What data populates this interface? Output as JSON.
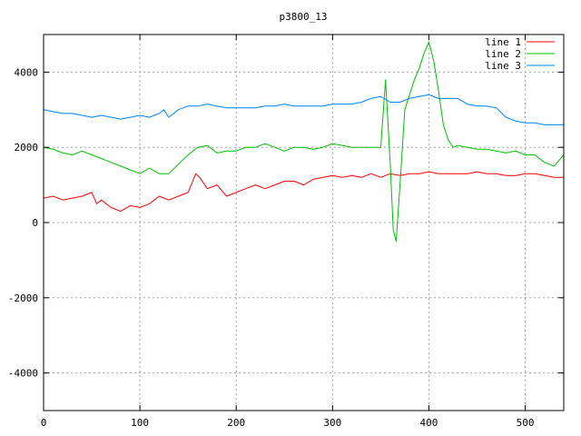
{
  "chart_data": {
    "type": "line",
    "title": "p3800_13",
    "xlabel": "",
    "ylabel": "",
    "xlim": [
      0,
      540
    ],
    "ylim": [
      -5000,
      5000
    ],
    "xticks": [
      0,
      100,
      200,
      300,
      400,
      500
    ],
    "yticks": [
      -4000,
      -2000,
      0,
      2000,
      4000
    ],
    "xtick_labels": [
      "0",
      "100",
      "200",
      "300",
      "400",
      "500"
    ],
    "ytick_labels": [
      "-4000",
      "-2000",
      "0",
      "2000",
      "4000"
    ],
    "grid": true,
    "legend_position": "top-right",
    "series": [
      {
        "name": "line 1",
        "color": "#ff0000",
        "x": [
          0,
          10,
          20,
          30,
          40,
          50,
          55,
          60,
          70,
          80,
          90,
          100,
          110,
          120,
          130,
          140,
          150,
          158,
          162,
          170,
          180,
          190,
          200,
          210,
          220,
          230,
          240,
          250,
          260,
          270,
          280,
          290,
          300,
          310,
          320,
          330,
          340,
          350,
          360,
          370,
          380,
          390,
          400,
          410,
          420,
          430,
          440,
          450,
          460,
          470,
          480,
          490,
          500,
          510,
          520,
          530,
          540
        ],
        "y": [
          650,
          700,
          600,
          650,
          700,
          800,
          500,
          600,
          400,
          300,
          450,
          400,
          500,
          700,
          600,
          700,
          800,
          1300,
          1200,
          900,
          1000,
          700,
          800,
          900,
          1000,
          900,
          1000,
          1100,
          1100,
          1000,
          1150,
          1200,
          1250,
          1200,
          1250,
          1200,
          1300,
          1200,
          1300,
          1250,
          1300,
          1300,
          1350,
          1300,
          1300,
          1300,
          1300,
          1350,
          1300,
          1300,
          1250,
          1250,
          1300,
          1300,
          1250,
          1200,
          1200
        ]
      },
      {
        "name": "line 2",
        "color": "#00c000",
        "x": [
          0,
          10,
          20,
          30,
          40,
          50,
          60,
          70,
          80,
          90,
          100,
          110,
          120,
          130,
          140,
          150,
          160,
          170,
          180,
          190,
          200,
          210,
          220,
          230,
          240,
          250,
          260,
          270,
          280,
          290,
          300,
          310,
          320,
          330,
          340,
          350,
          355,
          360,
          363,
          366,
          370,
          375,
          380,
          385,
          390,
          395,
          400,
          405,
          410,
          415,
          420,
          425,
          430,
          440,
          450,
          460,
          470,
          480,
          490,
          500,
          510,
          520,
          530,
          540
        ],
        "y": [
          2000,
          1950,
          1850,
          1800,
          1900,
          1800,
          1700,
          1600,
          1500,
          1400,
          1300,
          1450,
          1300,
          1300,
          1550,
          1800,
          2000,
          2050,
          1850,
          1900,
          1900,
          2000,
          2000,
          2100,
          2000,
          1900,
          2000,
          2000,
          1950,
          2000,
          2100,
          2050,
          2000,
          2000,
          2000,
          2000,
          3800,
          1500,
          -200,
          -500,
          1000,
          3000,
          3400,
          3800,
          4100,
          4500,
          4800,
          4300,
          3500,
          2600,
          2200,
          2000,
          2050,
          2000,
          1950,
          1950,
          1900,
          1850,
          1900,
          1800,
          1800,
          1600,
          1500,
          1800
        ]
      },
      {
        "name": "line 3",
        "color": "#0080ff",
        "x": [
          0,
          10,
          20,
          30,
          40,
          50,
          60,
          70,
          80,
          90,
          100,
          110,
          120,
          125,
          130,
          140,
          150,
          160,
          170,
          180,
          190,
          200,
          210,
          220,
          230,
          240,
          250,
          260,
          270,
          280,
          290,
          300,
          310,
          320,
          330,
          340,
          350,
          360,
          370,
          380,
          390,
          400,
          410,
          420,
          430,
          440,
          450,
          460,
          470,
          480,
          490,
          500,
          510,
          520,
          530,
          540
        ],
        "y": [
          3000,
          2950,
          2900,
          2900,
          2850,
          2800,
          2850,
          2800,
          2750,
          2800,
          2850,
          2800,
          2900,
          3000,
          2800,
          3000,
          3100,
          3100,
          3150,
          3100,
          3050,
          3050,
          3050,
          3050,
          3100,
          3100,
          3150,
          3100,
          3100,
          3100,
          3100,
          3150,
          3150,
          3150,
          3200,
          3300,
          3350,
          3200,
          3200,
          3300,
          3350,
          3400,
          3300,
          3300,
          3300,
          3150,
          3100,
          3100,
          3050,
          2800,
          2700,
          2650,
          2650,
          2600,
          2600,
          2600
        ]
      }
    ]
  }
}
